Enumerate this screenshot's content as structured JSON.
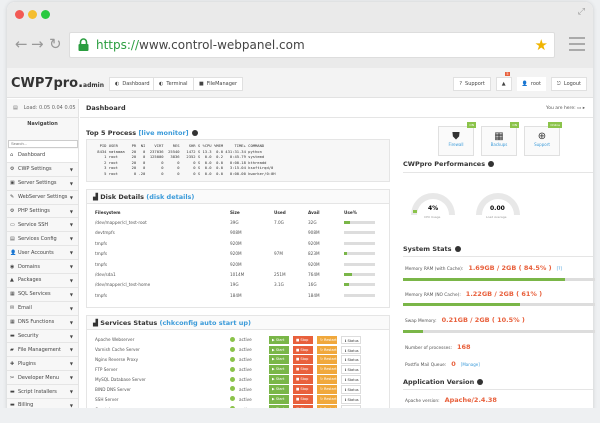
{
  "browser": {
    "url_scheme": "https://",
    "url_rest": "www.control-webpanel.com",
    "colors": {
      "close": "#f25a55",
      "min": "#f5be2f",
      "max": "#29c941"
    }
  },
  "header": {
    "logo": "CWP7pro.",
    "logo_suffix": "admin",
    "buttons": [
      "Dashboard",
      "Terminal",
      "FileManager"
    ],
    "support": "Support",
    "notif_count": "5",
    "user": "root",
    "logout": "Logout"
  },
  "sidebar": {
    "load": "Load: 0.05 0.04 0.05",
    "nav_title": "Navigation",
    "search_placeholder": "Search...",
    "items": [
      {
        "label": "Dashboard",
        "icon": "⌂"
      },
      {
        "label": "CWP Settings",
        "icon": "⚙"
      },
      {
        "label": "Server Settings",
        "icon": "▣"
      },
      {
        "label": "WebServer Settings",
        "icon": "✎"
      },
      {
        "label": "PHP Settings",
        "icon": "⚙"
      },
      {
        "label": "Service SSH",
        "icon": "▭"
      },
      {
        "label": "Services Config",
        "icon": "▤"
      },
      {
        "label": "User Accounts",
        "icon": "👤"
      },
      {
        "label": "Domains",
        "icon": "◉"
      },
      {
        "label": "Packages",
        "icon": "▲"
      },
      {
        "label": "SQL Services",
        "icon": "▦"
      },
      {
        "label": "Email",
        "icon": "✉"
      },
      {
        "label": "DNS Functions",
        "icon": "▦"
      },
      {
        "label": "Security",
        "icon": "▬"
      },
      {
        "label": "File Management",
        "icon": "▰"
      },
      {
        "label": "Plugins",
        "icon": "✚"
      },
      {
        "label": "Developer Menu",
        "icon": "✂"
      },
      {
        "label": "Script Installers",
        "icon": "▬"
      },
      {
        "label": "Billing",
        "icon": "▬"
      }
    ]
  },
  "main": {
    "title": "Dashboard",
    "you_are_here": "You are here:",
    "top5": {
      "title": "Top 5 Process",
      "link": "[live monitor]",
      "lines": [
        "  PID USER      PR  NI    VIRT    RES    SHR S %CPU %MEM     TIME+ COMMAND",
        " 8434 nataaaa   20   0  237036  25540   1472 S 13.3  0.0 431:31.34 python",
        "    1 root      20   0  125000   3836   2352 S  0.0  0.2   0:45.79 systemd",
        "    2 root      20   0       0      0      0 S  0.0  0.0   0:00.18 kthreadd",
        "    3 root      20   0       0      0      0 S  0.0  0.0   3:15.04 ksoftirqd/0",
        "    5 root       0 -20       0      0      0 S  0.0  0.0   0:00.00 kworker/0:0H"
      ]
    },
    "disk": {
      "title": "Disk Details",
      "link": "(disk details)",
      "headers": [
        "Filesystem",
        "Size",
        "Used",
        "Avail",
        "Use%"
      ],
      "rows": [
        [
          "/dev/mapper/cl_test-root",
          "39G",
          "7.0G",
          "32G",
          18
        ],
        [
          "devtmpfs",
          "908M",
          "",
          "908M",
          0
        ],
        [
          "tmpfs",
          "920M",
          "",
          "920M",
          0
        ],
        [
          "tmpfs",
          "920M",
          "97M",
          "823M",
          11
        ],
        [
          "tmpfs",
          "920M",
          "",
          "920M",
          0
        ],
        [
          "/dev/sda1",
          "1014M",
          "251M",
          "764M",
          25
        ],
        [
          "/dev/mapper/cl_test-home",
          "19G",
          "3.1G",
          "16G",
          17
        ],
        [
          "tmpfs",
          "184M",
          "",
          "184M",
          0
        ]
      ]
    },
    "services": {
      "title": "Services Status",
      "link": "(chkconfig auto start up)",
      "status": "active",
      "actions": [
        "Start",
        "Stop",
        "Restart",
        "Status"
      ],
      "names": [
        "Apache Webserver",
        "Varnish Cache Server",
        "Nginx Reverse Proxy",
        "FTP Server",
        "MySQL Database Server",
        "BIND DNS Server",
        "SSH Server",
        "Crontab"
      ]
    }
  },
  "right": {
    "quick": [
      {
        "label": "Firewall",
        "tag": "ON",
        "icon": "shield"
      },
      {
        "label": "Backups",
        "tag": "ON",
        "icon": "database"
      },
      {
        "label": "Support",
        "tag": "Online",
        "icon": "lifebuoy"
      }
    ],
    "perf_title": "CWPpro Performances",
    "cpu": "4%",
    "cpu_label": "CPU Usage",
    "load": "0.00",
    "load_label": "Load Average",
    "stats_title": "System Stats",
    "mem_cache_label": "Memory RAM (with Cache):",
    "mem_cache": "1.69GB / 2GB ( 84.5% )",
    "mem_cache_pct": 84.5,
    "mem_cache_link": "[?]",
    "mem_nocache_label": "Memory RAM (NO Cache):",
    "mem_nocache": "1.22GB / 2GB ( 61% )",
    "mem_nocache_pct": 61,
    "swap_label": "Swap Memory:",
    "swap": "0.21GB / 2GB ( 10.5% )",
    "swap_pct": 10.5,
    "proc_label": "Number of processes:",
    "proc": "168",
    "mailq_label": "Postfix Mail Queue:",
    "mailq": "0",
    "mailq_link": "[Manage]",
    "app_title": "Application Version",
    "apache_label": "Apache version:",
    "apache": "Apache/2.4.38"
  }
}
